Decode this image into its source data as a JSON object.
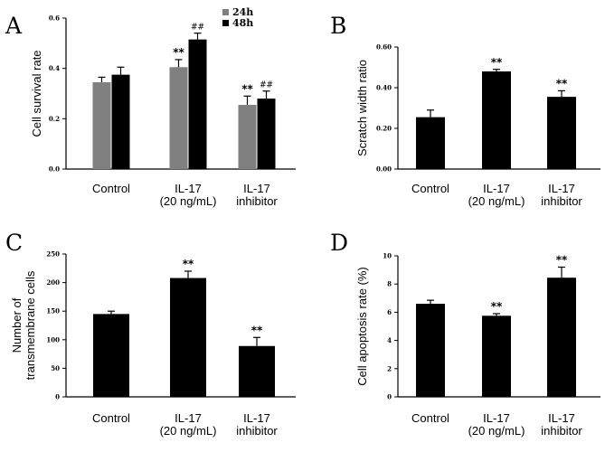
{
  "chart_data": [
    {
      "panel": "A",
      "type": "bar",
      "ylabel": "Cell survival rate",
      "ylim": [
        0,
        0.6
      ],
      "yticks": [
        "0.0",
        "0.2",
        "0.4",
        "0.6"
      ],
      "categories": [
        [
          "Control"
        ],
        [
          "IL-17",
          "(20 ng/mL)"
        ],
        [
          "IL-17",
          "inhibitor"
        ]
      ],
      "legend": [
        "24h",
        "48h"
      ],
      "series": [
        {
          "name": "24h",
          "color": "#808080",
          "values": [
            0.345,
            0.405,
            0.255
          ],
          "errors": [
            0.02,
            0.03,
            0.035
          ],
          "annotations": [
            "",
            "**",
            "**"
          ]
        },
        {
          "name": "48h",
          "color": "#000000",
          "values": [
            0.375,
            0.515,
            0.28
          ],
          "errors": [
            0.03,
            0.025,
            0.03
          ],
          "annotations": [
            "",
            "##",
            "##"
          ]
        }
      ]
    },
    {
      "panel": "B",
      "type": "bar",
      "ylabel": "Scratch width ratio",
      "ylim": [
        0,
        0.6
      ],
      "yticks": [
        "0.00",
        "0.20",
        "0.40",
        "0.60"
      ],
      "categories": [
        [
          "Control"
        ],
        [
          "IL-17",
          "(20 ng/mL)"
        ],
        [
          "IL-17",
          "inhibitor"
        ]
      ],
      "series": [
        {
          "name": "ratio",
          "color": "#000000",
          "values": [
            0.255,
            0.48,
            0.355
          ],
          "errors": [
            0.035,
            0.01,
            0.03
          ],
          "annotations": [
            "",
            "**",
            "**"
          ]
        }
      ]
    },
    {
      "panel": "C",
      "type": "bar",
      "ylabel": [
        "Number of",
        "transmembrane cells"
      ],
      "ylim": [
        0,
        250
      ],
      "yticks": [
        "0",
        "50",
        "100",
        "150",
        "200",
        "250"
      ],
      "categories": [
        [
          "Control"
        ],
        [
          "IL-17",
          "(20 ng/mL)"
        ],
        [
          "IL-17",
          "inhibitor"
        ]
      ],
      "series": [
        {
          "name": "cells",
          "color": "#000000",
          "values": [
            145,
            208,
            89
          ],
          "errors": [
            5,
            12,
            15
          ],
          "annotations": [
            "",
            "**",
            "**"
          ]
        }
      ]
    },
    {
      "panel": "D",
      "type": "bar",
      "ylabel": "Cell apoptosis rate (%)",
      "ylim": [
        0,
        10
      ],
      "yticks": [
        "0",
        "2",
        "4",
        "6",
        "8",
        "10"
      ],
      "categories": [
        [
          "Control"
        ],
        [
          "IL-17",
          "(20 ng/mL)"
        ],
        [
          "IL-17",
          "inhibitor"
        ]
      ],
      "series": [
        {
          "name": "apoptosis",
          "color": "#000000",
          "values": [
            6.6,
            5.75,
            8.45
          ],
          "errors": [
            0.25,
            0.15,
            0.75
          ],
          "annotations": [
            "",
            "**",
            "**"
          ]
        }
      ]
    }
  ]
}
